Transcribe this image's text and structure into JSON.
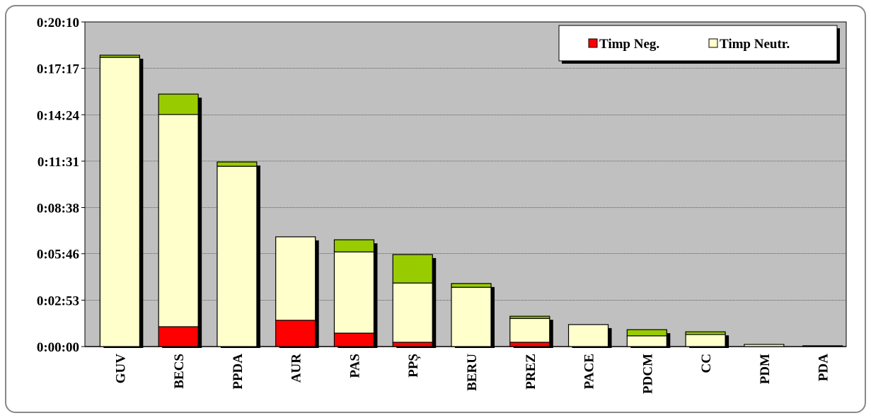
{
  "chart_data": {
    "type": "bar",
    "stacked": true,
    "categories": [
      "GUV",
      "BECS",
      "PPDA",
      "AUR",
      "PAS",
      "PPȘ",
      "BERU",
      "PREZ",
      "PACE",
      "PDCM",
      "CC",
      "PDM",
      "PDA"
    ],
    "series": [
      {
        "name": "Timp Neg.",
        "color": "#ff0000",
        "values": [
          0,
          74,
          0,
          98,
          50,
          16,
          0,
          16,
          0,
          0,
          0,
          0,
          0
        ]
      },
      {
        "name": "Timp Neutr.",
        "color": "#ffffcc",
        "values": [
          1078,
          791,
          672,
          311,
          303,
          221,
          221,
          89,
          82,
          40,
          45,
          8,
          3
        ]
      },
      {
        "color": "#99cc00",
        "values": [
          8,
          76,
          16,
          0,
          45,
          106,
          14,
          8,
          0,
          23,
          10,
          0,
          0
        ]
      }
    ],
    "ylim": [
      0,
      1210
    ],
    "yticks": [
      {
        "value": 0,
        "label": "0:00:00"
      },
      {
        "value": 173,
        "label": "0:02:53"
      },
      {
        "value": 346,
        "label": "0:05:46"
      },
      {
        "value": 518,
        "label": "0:08:38"
      },
      {
        "value": 691,
        "label": "0:11:31"
      },
      {
        "value": 864,
        "label": "0:14:24"
      },
      {
        "value": 1037,
        "label": "0:17:17"
      },
      {
        "value": 1210,
        "label": "0:20:10"
      }
    ],
    "grid": true,
    "legend": "top-right"
  }
}
